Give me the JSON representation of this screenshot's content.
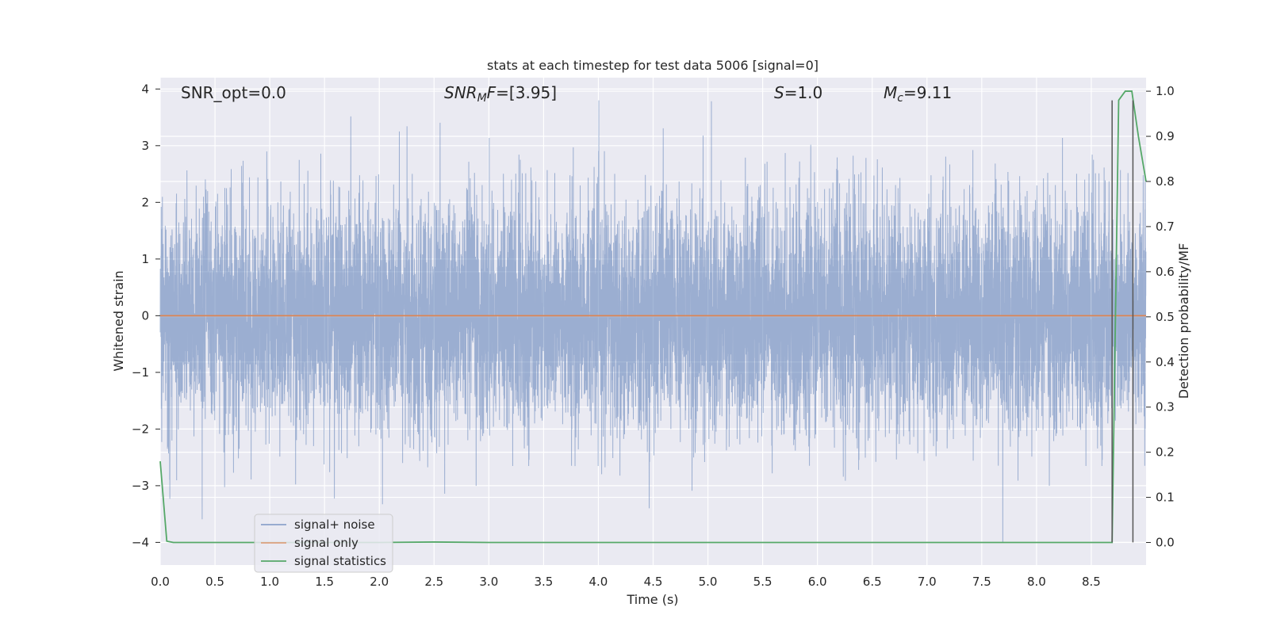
{
  "chart_data": {
    "type": "line",
    "title": "stats at each timestep for test data 5006 [signal=0]",
    "xlabel": "Time (s)",
    "ylabel": "Whitened strain",
    "y2label": "Detection probability/MF",
    "xlim": [
      0.0,
      9.0
    ],
    "ylim": [
      -4.4,
      4.2
    ],
    "y2lim": [
      -0.05,
      1.03
    ],
    "x_ticks": [
      "0.0",
      "0.5",
      "1.0",
      "1.5",
      "2.0",
      "2.5",
      "3.0",
      "3.5",
      "4.0",
      "4.5",
      "5.0",
      "5.5",
      "6.0",
      "6.5",
      "7.0",
      "7.5",
      "8.0",
      "8.5"
    ],
    "y_ticks": [
      "4",
      "3",
      "2",
      "1",
      "0",
      "−1",
      "−2",
      "−3",
      "−4"
    ],
    "y2_ticks": [
      "1.0",
      "0.9",
      "0.8",
      "0.7",
      "0.6",
      "0.5",
      "0.4",
      "0.3",
      "0.2",
      "0.1",
      "0.0"
    ],
    "grid": true,
    "legend_position": "lower-left",
    "annotations": {
      "snr_opt": "SNR_opt=0.0",
      "snr_mf": "=[3.95]",
      "snr_mf_sym": "SNR",
      "snr_mf_sub": "M",
      "snr_mf_tail": "F",
      "s_sym": "S",
      "s_val": "=1.0",
      "mc_sym": "M",
      "mc_sub": "c",
      "mc_val": "=9.11"
    },
    "series": [
      {
        "name": "signal+ noise",
        "axis": "left",
        "color": "#4c72b0",
        "alpha": 0.5,
        "sample_rate": 1000,
        "description_values": "noise ~ N(0, 1), range roughly -4 to 3.8"
      },
      {
        "name": "signal only",
        "axis": "left",
        "color": "#dd8452",
        "x": [
          0.0,
          9.0
        ],
        "y": [
          0.0,
          0.0
        ]
      },
      {
        "name": "signal statistics",
        "axis": "right",
        "color": "#55a868",
        "x": [
          0.0,
          0.06,
          0.12,
          0.5,
          1.0,
          2.0,
          2.5,
          3.0,
          4.0,
          5.0,
          6.0,
          7.0,
          8.0,
          8.6,
          8.69,
          8.75,
          8.81,
          8.87,
          8.93,
          9.0
        ],
        "y": [
          0.18,
          0.003,
          0.0,
          0.0,
          0.0,
          0.0,
          0.001,
          0.0,
          0.0,
          0.0,
          0.0,
          0.0,
          0.0,
          0.0,
          0.0,
          0.98,
          1.0,
          1.0,
          0.9,
          0.8
        ]
      }
    ],
    "vlines": [
      {
        "x": 8.69,
        "color": "#555555",
        "ymin": -4.0,
        "ymax": 3.8
      },
      {
        "x": 8.88,
        "color": "#555555",
        "ymin": -4.0,
        "ymax": 3.8
      }
    ]
  }
}
